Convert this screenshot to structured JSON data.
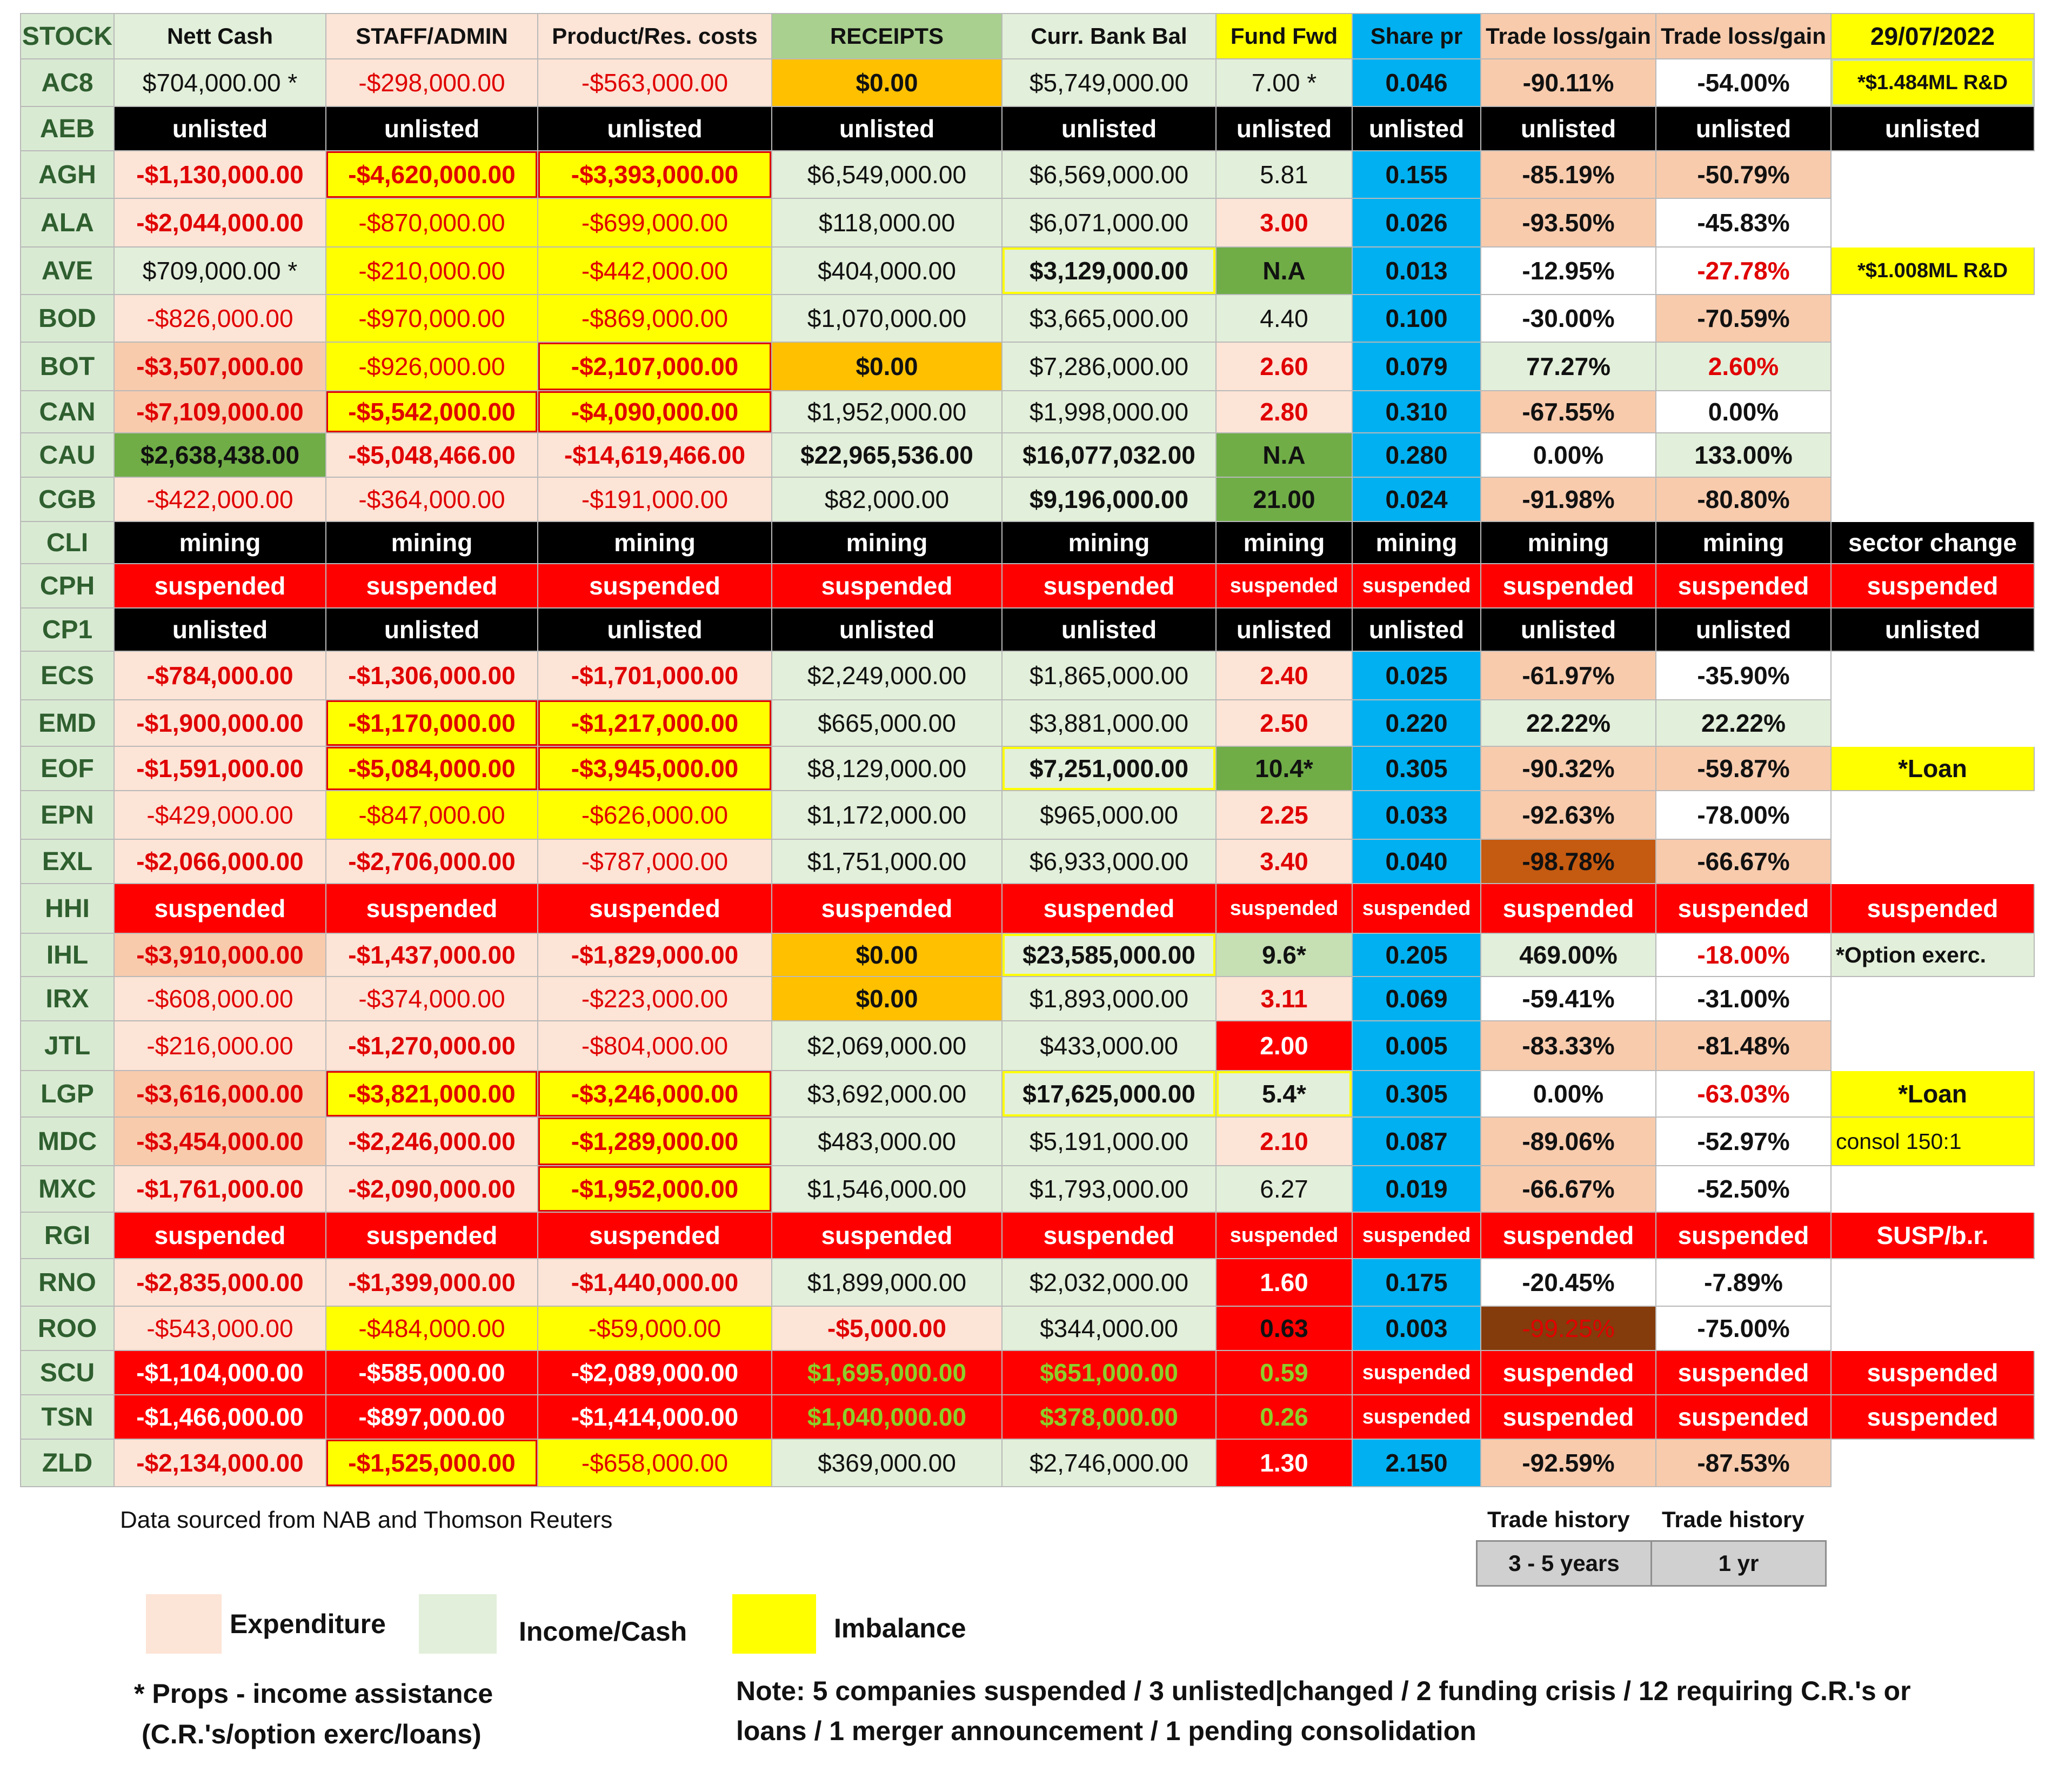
{
  "header": [
    "STOCK",
    "Nett Cash",
    "STAFF/ADMIN",
    "Product/Res. costs",
    "RECEIPTS",
    "Curr. Bank Bal",
    "Fund Fwd",
    "Share pr",
    "Trade loss/gain",
    "Trade loss/gain",
    "29/07/2022"
  ],
  "rows": [
    {
      "stock": "AC8",
      "cells": [
        "$704,000.00 *",
        "-$298,000.00",
        "-$563,000.00",
        "$0.00",
        "$5,749,000.00",
        "7.00 *",
        "0.046",
        "-90.11%",
        "-54.00%",
        "*$1.484ML R&D"
      ]
    },
    {
      "stock": "AEB",
      "cells": [
        "unlisted",
        "unlisted",
        "unlisted",
        "unlisted",
        "unlisted",
        "unlisted",
        "unlisted",
        "unlisted",
        "unlisted",
        "unlisted"
      ]
    },
    {
      "stock": "AGH",
      "cells": [
        "-$1,130,000.00",
        "-$4,620,000.00",
        "-$3,393,000.00",
        "$6,549,000.00",
        "$6,569,000.00",
        "5.81",
        "0.155",
        "-85.19%",
        "-50.79%",
        ""
      ]
    },
    {
      "stock": "ALA",
      "cells": [
        "-$2,044,000.00",
        "-$870,000.00",
        "-$699,000.00",
        "$118,000.00",
        "$6,071,000.00",
        "3.00",
        "0.026",
        "-93.50%",
        "-45.83%",
        ""
      ]
    },
    {
      "stock": "AVE",
      "cells": [
        "$709,000.00 *",
        "-$210,000.00",
        "-$442,000.00",
        "$404,000.00",
        "$3,129,000.00",
        "N.A",
        "0.013",
        "-12.95%",
        "-27.78%",
        "*$1.008ML R&D"
      ]
    },
    {
      "stock": "BOD",
      "cells": [
        "-$826,000.00",
        "-$970,000.00",
        "-$869,000.00",
        "$1,070,000.00",
        "$3,665,000.00",
        "4.40",
        "0.100",
        "-30.00%",
        "-70.59%",
        ""
      ]
    },
    {
      "stock": "BOT",
      "cells": [
        "-$3,507,000.00",
        "-$926,000.00",
        "-$2,107,000.00",
        "$0.00",
        "$7,286,000.00",
        "2.60",
        "0.079",
        "77.27%",
        "2.60%",
        ""
      ]
    },
    {
      "stock": "CAN",
      "cells": [
        "-$7,109,000.00",
        "-$5,542,000.00",
        "-$4,090,000.00",
        "$1,952,000.00",
        "$1,998,000.00",
        "2.80",
        "0.310",
        "-67.55%",
        "0.00%",
        ""
      ]
    },
    {
      "stock": "CAU",
      "cells": [
        "$2,638,438.00",
        "-$5,048,466.00",
        "-$14,619,466.00",
        "$22,965,536.00",
        "$16,077,032.00",
        "N.A",
        "0.280",
        "0.00%",
        "133.00%",
        ""
      ]
    },
    {
      "stock": "CGB",
      "cells": [
        "-$422,000.00",
        "-$364,000.00",
        "-$191,000.00",
        "$82,000.00",
        "$9,196,000.00",
        "21.00",
        "0.024",
        "-91.98%",
        "-80.80%",
        ""
      ]
    },
    {
      "stock": "CLI",
      "cells": [
        "mining",
        "mining",
        "mining",
        "mining",
        "mining",
        "mining",
        "mining",
        "mining",
        "mining",
        "sector change"
      ]
    },
    {
      "stock": "CPH",
      "cells": [
        "suspended",
        "suspended",
        "suspended",
        "suspended",
        "suspended",
        "suspended",
        "suspended",
        "suspended",
        "suspended",
        "suspended"
      ]
    },
    {
      "stock": "CP1",
      "cells": [
        "unlisted",
        "unlisted",
        "unlisted",
        "unlisted",
        "unlisted",
        "unlisted",
        "unlisted",
        "unlisted",
        "unlisted",
        "unlisted"
      ]
    },
    {
      "stock": "ECS",
      "cells": [
        "-$784,000.00",
        "-$1,306,000.00",
        "-$1,701,000.00",
        "$2,249,000.00",
        "$1,865,000.00",
        "2.40",
        "0.025",
        "-61.97%",
        "-35.90%",
        ""
      ]
    },
    {
      "stock": "EMD",
      "cells": [
        "-$1,900,000.00",
        "-$1,170,000.00",
        "-$1,217,000.00",
        "$665,000.00",
        "$3,881,000.00",
        "2.50",
        "0.220",
        "22.22%",
        "22.22%",
        ""
      ]
    },
    {
      "stock": "EOF",
      "cells": [
        "-$1,591,000.00",
        "-$5,084,000.00",
        "-$3,945,000.00",
        "$8,129,000.00",
        "$7,251,000.00",
        "10.4*",
        "0.305",
        "-90.32%",
        "-59.87%",
        "*Loan"
      ]
    },
    {
      "stock": "EPN",
      "cells": [
        "-$429,000.00",
        "-$847,000.00",
        "-$626,000.00",
        "$1,172,000.00",
        "$965,000.00",
        "2.25",
        "0.033",
        "-92.63%",
        "-78.00%",
        ""
      ]
    },
    {
      "stock": "EXL",
      "cells": [
        "-$2,066,000.00",
        "-$2,706,000.00",
        "-$787,000.00",
        "$1,751,000.00",
        "$6,933,000.00",
        "3.40",
        "0.040",
        "-98.78%",
        "-66.67%",
        ""
      ]
    },
    {
      "stock": "HHI",
      "cells": [
        "suspended",
        "suspended",
        "suspended",
        "suspended",
        "suspended",
        "suspended",
        "suspended",
        "suspended",
        "suspended",
        "suspended"
      ]
    },
    {
      "stock": "IHL",
      "cells": [
        "-$3,910,000.00",
        "-$1,437,000.00",
        "-$1,829,000.00",
        "$0.00",
        "$23,585,000.00",
        "9.6*",
        "0.205",
        "469.00%",
        "-18.00%",
        "*Option exerc."
      ]
    },
    {
      "stock": "IRX",
      "cells": [
        "-$608,000.00",
        "-$374,000.00",
        "-$223,000.00",
        "$0.00",
        "$1,893,000.00",
        "3.11",
        "0.069",
        "-59.41%",
        "-31.00%",
        ""
      ]
    },
    {
      "stock": "JTL",
      "cells": [
        "-$216,000.00",
        "-$1,270,000.00",
        "-$804,000.00",
        "$2,069,000.00",
        "$433,000.00",
        "2.00",
        "0.005",
        "-83.33%",
        "-81.48%",
        ""
      ]
    },
    {
      "stock": "LGP",
      "cells": [
        "-$3,616,000.00",
        "-$3,821,000.00",
        "-$3,246,000.00",
        "$3,692,000.00",
        "$17,625,000.00",
        "5.4*",
        "0.305",
        "0.00%",
        "-63.03%",
        "*Loan"
      ]
    },
    {
      "stock": "MDC",
      "cells": [
        "-$3,454,000.00",
        "-$2,246,000.00",
        "-$1,289,000.00",
        "$483,000.00",
        "$5,191,000.00",
        "2.10",
        "0.087",
        "-89.06%",
        "-52.97%",
        "consol 150:1"
      ]
    },
    {
      "stock": "MXC",
      "cells": [
        "-$1,761,000.00",
        "-$2,090,000.00",
        "-$1,952,000.00",
        "$1,546,000.00",
        "$1,793,000.00",
        "6.27",
        "0.019",
        "-66.67%",
        "-52.50%",
        ""
      ]
    },
    {
      "stock": "RGI",
      "cells": [
        "suspended",
        "suspended",
        "suspended",
        "suspended",
        "suspended",
        "suspended",
        "suspended",
        "suspended",
        "suspended",
        "SUSP/b.r."
      ]
    },
    {
      "stock": "RNO",
      "cells": [
        "-$2,835,000.00",
        "-$1,399,000.00",
        "-$1,440,000.00",
        "$1,899,000.00",
        "$2,032,000.00",
        "1.60",
        "0.175",
        "-20.45%",
        "-7.89%",
        ""
      ]
    },
    {
      "stock": "ROO",
      "cells": [
        "-$543,000.00",
        "-$484,000.00",
        "-$59,000.00",
        "-$5,000.00",
        "$344,000.00",
        "0.63",
        "0.003",
        "-99.25%",
        "-75.00%",
        ""
      ]
    },
    {
      "stock": "SCU",
      "cells": [
        "-$1,104,000.00",
        "-$585,000.00",
        "-$2,089,000.00",
        "$1,695,000.00",
        "$651,000.00",
        "0.59",
        "suspended",
        "suspended",
        "suspended",
        "suspended"
      ]
    },
    {
      "stock": "TSN",
      "cells": [
        "-$1,466,000.00",
        "-$897,000.00",
        "-$1,414,000.00",
        "$1,040,000.00",
        "$378,000.00",
        "0.26",
        "suspended",
        "suspended",
        "suspended",
        "suspended"
      ]
    },
    {
      "stock": "ZLD",
      "cells": [
        "-$2,134,000.00",
        "-$1,525,000.00",
        "-$658,000.00",
        "$369,000.00",
        "$2,746,000.00",
        "1.30",
        "2.150",
        "-92.59%",
        "-87.53%",
        ""
      ]
    }
  ],
  "footer": {
    "source": "Data sourced from NAB and Thomson Reuters",
    "trade_history_1": "Trade history",
    "trade_history_2": "Trade history",
    "period_1": "3 - 5 years",
    "period_2": "1 yr",
    "legend_expenditure": "Expenditure",
    "legend_income": "Income/Cash",
    "legend_imbalance": "Imbalance",
    "props_line1": "* Props - income assistance",
    "props_line2": "(C.R.'s/option exerc/loans)",
    "note_line1": "Note:  5 companies suspended / 3 unlisted|changed / 2 funding crisis / 12 requiring C.R.'s or",
    "note_line2": "loans / 1 merger announcement / 1 pending consolidation"
  },
  "colors": {
    "expenditure": "#fce4d6",
    "income": "#e2efda",
    "imbalance": "#ffff00",
    "suspended": "#ff0000",
    "unlisted": "#000000",
    "share_price": "#00b0f0",
    "receipts_zero": "#ffc000"
  }
}
